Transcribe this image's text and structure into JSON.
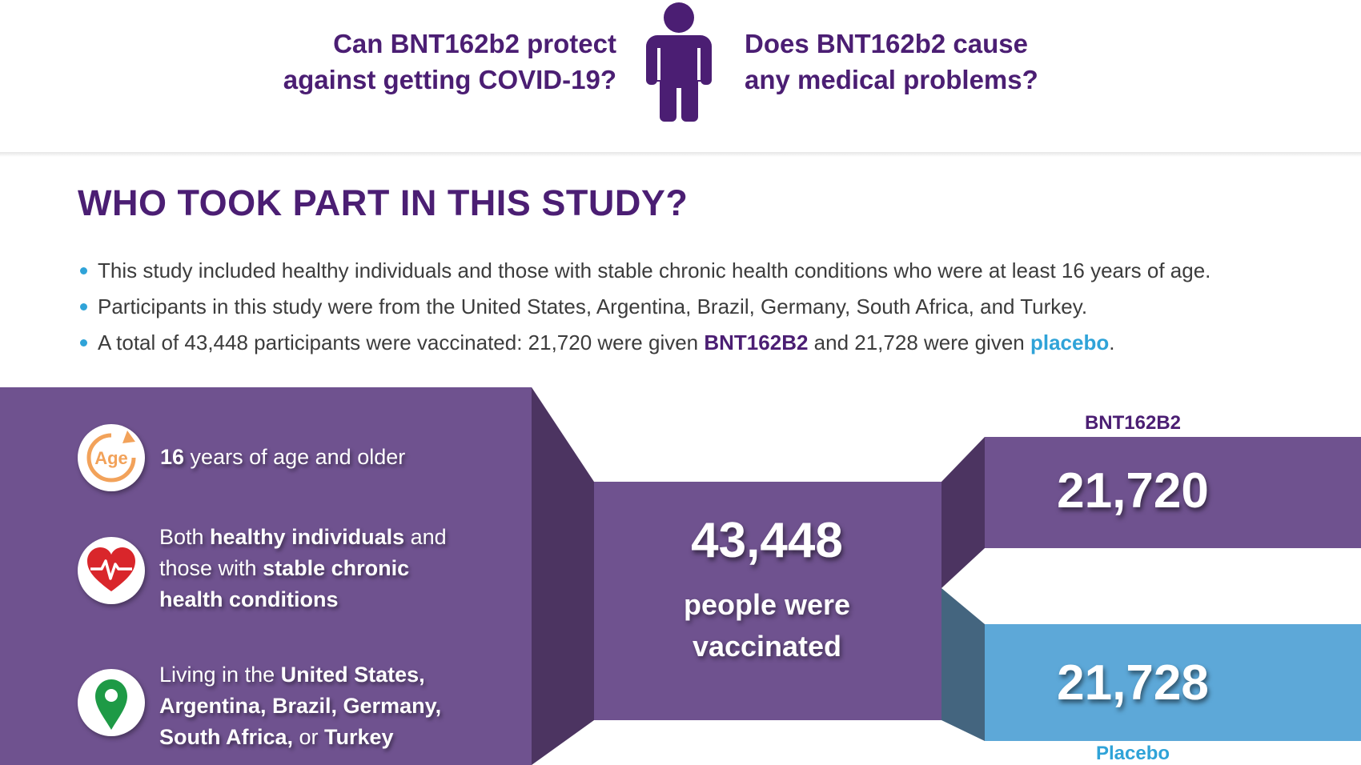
{
  "header": {
    "question_protect": [
      "Can BNT162b2 protect",
      "against getting COVID-19?"
    ],
    "question_problems": [
      "Does BNT162b2 cause",
      "any medical problems?"
    ],
    "icon": "person-icon"
  },
  "section": {
    "title": "WHO TOOK PART IN THIS STUDY?",
    "bullets": {
      "b1": "This study included healthy individuals and those with stable chronic health conditions who were at least 16 years of age.",
      "b2": "Participants in this study were from the United States, Argentina, Brazil, Germany, South Africa, and Turkey.",
      "b3_pre": "A total of 43,448 participants were vaccinated: 21,720 were given ",
      "b3_drug": "BNT162B2",
      "b3_mid": " and 21,728 were given ",
      "b3_placebo": "placebo",
      "b3_end": "."
    }
  },
  "criteria": {
    "age": {
      "icon": "age-icon",
      "icon_text": "Age",
      "strong": "16",
      "rest": " years of age and older"
    },
    "health": {
      "icon": "heart-pulse-icon",
      "t1": "Both ",
      "s1": "healthy individuals",
      "t2": " and",
      "t3": "those with ",
      "s2": "stable chronic",
      "s3": "health conditions"
    },
    "location": {
      "icon": "location-pin-icon",
      "t1": "Living in the ",
      "s1": "United States,",
      "s2": "Argentina, Brazil, Germany,",
      "s3": "South Africa,",
      "t2": " or ",
      "s4": "Turkey"
    }
  },
  "summary": {
    "total": "43,448",
    "caption": [
      "people were",
      "vaccinated"
    ]
  },
  "arms": {
    "drug": {
      "label": "BNT162B2",
      "count": "21,720"
    },
    "placebo": {
      "label": "Placebo",
      "count": "21,728"
    }
  },
  "colors": {
    "purple_dark": "#4b1e73",
    "purple_panel": "#6f528f",
    "purple_shadow": "#4c3461",
    "blue_panel": "#5da8d8",
    "blue_shadow": "#44657f",
    "accent_blue": "#2fa3d8",
    "age_orange": "#f2a25a",
    "heart_red": "#d9262b",
    "pin_green": "#1e9a46"
  }
}
